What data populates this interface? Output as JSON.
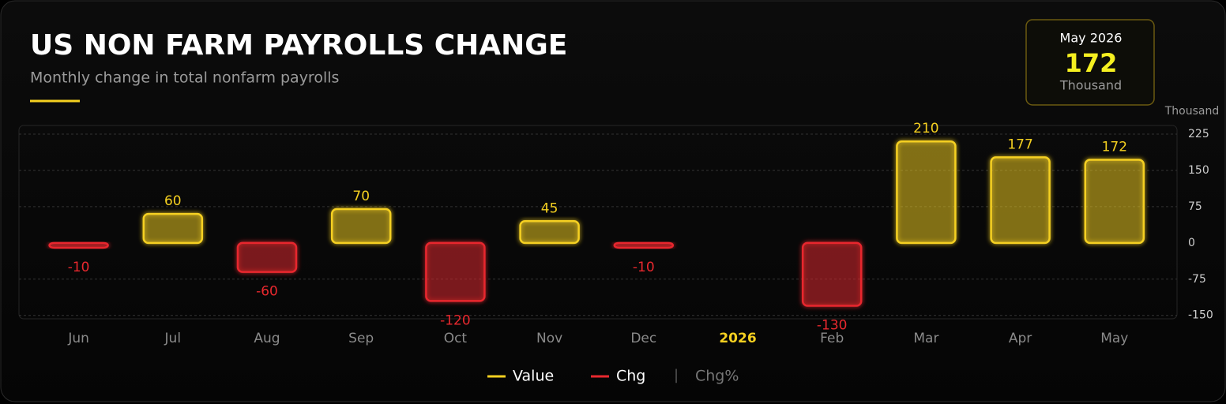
{
  "chart_data": {
    "type": "bar",
    "title": "US NON FARM PAYROLLS CHANGE",
    "subtitle": "Monthly change in total nonfarm payrolls",
    "y_label": "Thousand",
    "latest": {
      "label": "May 2026",
      "value": 172,
      "unit": "Thousand"
    },
    "categories": [
      "Jun",
      "Jul",
      "Aug",
      "Sep",
      "Oct",
      "Nov",
      "Dec",
      "2026",
      "Feb",
      "Mar",
      "Apr",
      "May"
    ],
    "values": [
      -10,
      60,
      -60,
      70,
      -120,
      45,
      -10,
      null,
      -130,
      210,
      177,
      172
    ],
    "positive_color": "#f5d020",
    "negative_color": "#e8282e",
    "ylim": [
      -157,
      243
    ],
    "yticks": [
      225,
      150,
      75,
      0,
      -75,
      -150
    ],
    "grid": true,
    "legend": [
      {
        "name": "Value",
        "color": "#f5d020"
      },
      {
        "name": "Chg",
        "color": "#e8282e"
      },
      {
        "name": "Chg%"
      }
    ]
  }
}
